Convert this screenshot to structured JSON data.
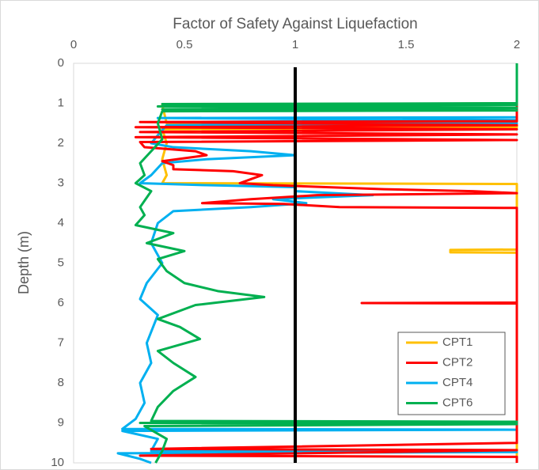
{
  "chart_data": {
    "type": "line",
    "title": "Factor of Safety Against Liquefaction",
    "y_label": "Depth (m)",
    "xlim": [
      0,
      2
    ],
    "xticks": [
      0,
      0.5,
      1,
      1.5,
      2
    ],
    "ylim": [
      0,
      10
    ],
    "yticks": [
      0,
      1,
      2,
      3,
      4,
      5,
      6,
      7,
      8,
      9,
      10
    ],
    "y_inverted": true,
    "grid": false,
    "legend": "lower right",
    "reference_line": {
      "value": 1,
      "depth": [
        0.1,
        10
      ],
      "color": "#000000"
    },
    "series": [
      {
        "name": "CPT1",
        "color": "#FFC000",
        "values": [
          2,
          2,
          0.4,
          0.42,
          2,
          2,
          0.4,
          0.42,
          0.4,
          0.42,
          0.4,
          2,
          2,
          1.7,
          1.7,
          2,
          2
        ],
        "depth": [
          0,
          1.0,
          1.05,
          1.5,
          1.55,
          1.6,
          1.65,
          2.0,
          2.4,
          2.8,
          3.0,
          3.02,
          4.66,
          4.67,
          4.73,
          4.74,
          10
        ]
      },
      {
        "name": "CPT2",
        "color": "#FF0000",
        "values": [
          2,
          2,
          0.3,
          2,
          0.28,
          2,
          0.3,
          2,
          0.28,
          2,
          0.3,
          0.32,
          0.55,
          0.6,
          0.4,
          0.45,
          0.45,
          0.72,
          0.85,
          0.8,
          0.75,
          0.9,
          1.4,
          1.8,
          2,
          1.1,
          0.8,
          0.58,
          0.95,
          1.2,
          2,
          2,
          1.3,
          2,
          2,
          0.35,
          2,
          0.3,
          2,
          2
        ],
        "depth": [
          0,
          1.45,
          1.47,
          1.55,
          1.6,
          1.65,
          1.72,
          1.78,
          1.85,
          1.92,
          1.97,
          2.1,
          2.2,
          2.3,
          2.45,
          2.55,
          2.65,
          2.7,
          2.8,
          2.9,
          3.0,
          3.05,
          3.15,
          3.2,
          3.25,
          3.3,
          3.4,
          3.5,
          3.52,
          3.6,
          3.62,
          5.99,
          6.0,
          6.01,
          9.5,
          9.65,
          9.68,
          9.82,
          9.85,
          10
        ]
      },
      {
        "name": "CPT4",
        "color": "#00B0F0",
        "values": [
          2,
          2,
          0.38,
          2,
          0.4,
          2,
          0.42,
          0.38,
          0.35,
          0.45,
          0.8,
          1.0,
          0.6,
          0.4,
          0.35,
          0.3,
          0.6,
          1.0,
          1.0,
          1.35,
          0.9,
          1.05,
          0.8,
          0.45,
          0.38,
          0.35,
          0.4,
          0.33,
          0.3,
          0.38,
          0.33,
          0.35,
          0.3,
          0.32,
          0.28,
          0.22,
          2,
          0.22,
          0.38,
          0.35,
          2,
          0.2,
          0.3,
          0.35
        ],
        "depth": [
          0,
          1.35,
          1.37,
          1.42,
          1.47,
          1.5,
          1.55,
          1.8,
          2.0,
          2.1,
          2.2,
          2.3,
          2.4,
          2.5,
          2.8,
          3.0,
          3.05,
          3.1,
          3.2,
          3.3,
          3.4,
          3.5,
          3.6,
          3.7,
          4.0,
          4.5,
          5.0,
          5.5,
          5.9,
          6.3,
          7.0,
          7.5,
          8.0,
          8.5,
          8.9,
          9.15,
          9.17,
          9.2,
          9.4,
          9.7,
          9.73,
          9.76,
          9.9,
          10
        ]
      },
      {
        "name": "CPT6",
        "color": "#00B050",
        "values": [
          2,
          2,
          0.4,
          2,
          0.38,
          2,
          0.4,
          2,
          0.4,
          0.38,
          0.4,
          0.35,
          0.3,
          0.32,
          0.28,
          0.35,
          0.3,
          0.32,
          0.28,
          0.45,
          0.33,
          0.5,
          0.38,
          0.42,
          0.5,
          0.65,
          0.86,
          0.55,
          0.38,
          0.48,
          0.57,
          0.38,
          0.45,
          0.55,
          0.45,
          0.38,
          0.35,
          2,
          0.3,
          2,
          0.32,
          0.42,
          0.4,
          0.37
        ],
        "depth": [
          0,
          1.0,
          1.02,
          1.05,
          1.08,
          1.12,
          1.15,
          1.18,
          1.2,
          1.5,
          1.9,
          2.2,
          2.5,
          2.8,
          3.0,
          3.2,
          3.6,
          3.8,
          4.05,
          4.25,
          4.5,
          4.7,
          4.9,
          5.2,
          5.5,
          5.7,
          5.85,
          6.05,
          6.4,
          6.6,
          6.9,
          7.2,
          7.5,
          7.85,
          8.2,
          8.6,
          8.95,
          8.97,
          9.0,
          9.03,
          9.08,
          9.4,
          9.7,
          10
        ]
      }
    ],
    "draw_order": [
      0,
      2,
      1,
      3
    ]
  }
}
